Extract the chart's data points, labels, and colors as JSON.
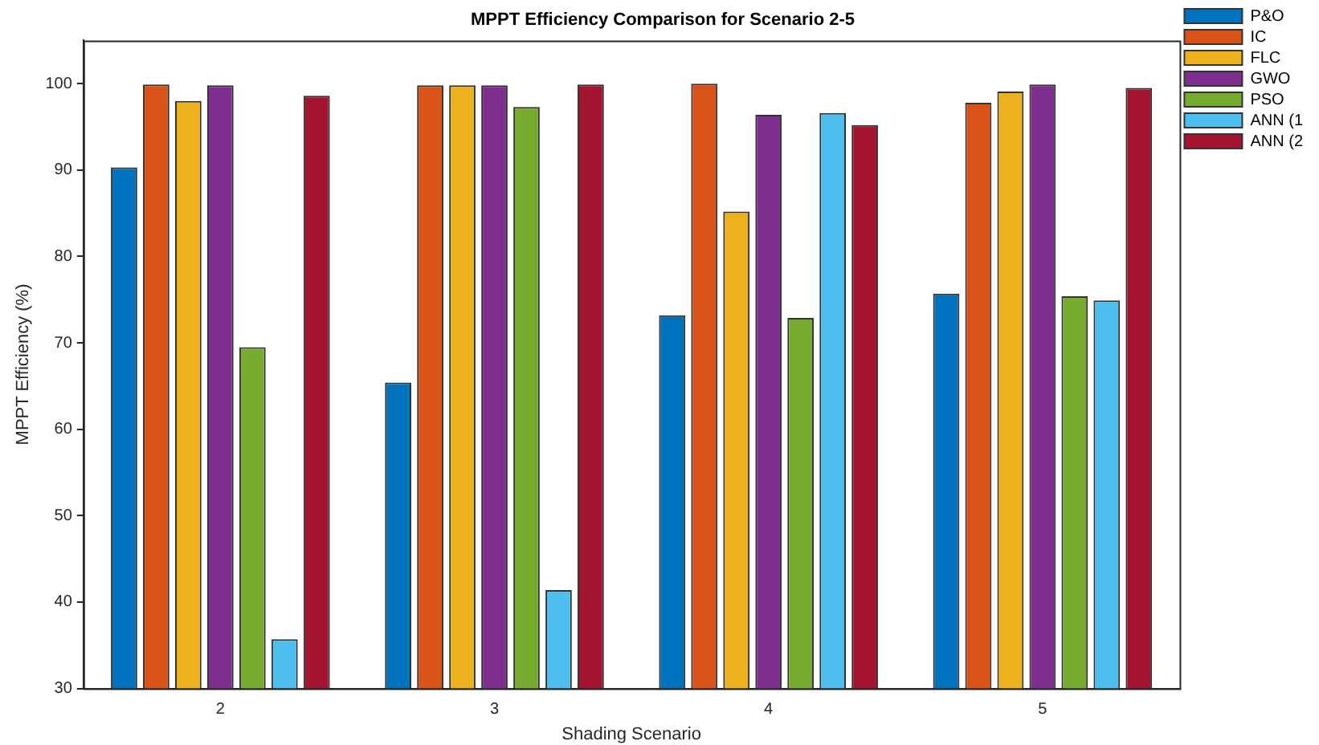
{
  "chart_data": {
    "type": "bar",
    "title": "MPPT Efficiency Comparison for Scenario 2-5",
    "xlabel": "Shading Scenario",
    "ylabel": "MPPT Efficiency (%)",
    "categories": [
      "2",
      "3",
      "4",
      "5"
    ],
    "series": [
      {
        "name": "P&O",
        "color": "#0072bd",
        "values": [
          90.3,
          65.4,
          73.2,
          75.7
        ]
      },
      {
        "name": "IC",
        "color": "#d95319",
        "values": [
          99.9,
          99.8,
          100,
          97.8
        ]
      },
      {
        "name": "FLC",
        "color": "#edb120",
        "values": [
          98.0,
          99.8,
          85.2,
          99.1
        ]
      },
      {
        "name": "GWO",
        "color": "#7e2f8e",
        "values": [
          99.8,
          99.8,
          96.4,
          99.9
        ]
      },
      {
        "name": "PSO",
        "color": "#77ac30",
        "values": [
          69.5,
          97.3,
          72.9,
          75.4
        ]
      },
      {
        "name": "ANN (1",
        "color": "#4dbeee",
        "values": [
          35.7,
          41.4,
          96.6,
          74.9
        ]
      },
      {
        "name": "ANN (2",
        "color": "#a2142f",
        "values": [
          98.6,
          99.9,
          95.2,
          99.5
        ]
      }
    ],
    "ylim": [
      30,
      105
    ],
    "yticks": [
      30,
      40,
      50,
      60,
      70,
      80,
      90,
      100
    ],
    "grid": false,
    "legend": "top right"
  }
}
